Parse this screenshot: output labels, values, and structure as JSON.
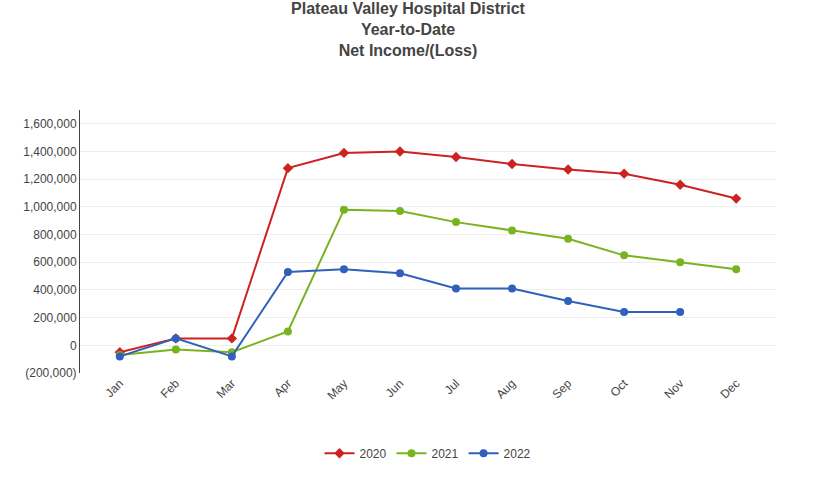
{
  "chart_data": {
    "type": "line",
    "title": "Plateau Valley Hospital District\nYear-to-Date\nNet Income/(Loss)",
    "categories": [
      "Jan",
      "Feb",
      "Mar",
      "Apr",
      "May",
      "Jun",
      "Jul",
      "Aug",
      "Sep",
      "Oct",
      "Nov",
      "Dec"
    ],
    "series": [
      {
        "name": "2020",
        "color": "#CC2222",
        "marker": "diamond",
        "values": [
          -50000,
          50000,
          50000,
          1280000,
          1390000,
          1400000,
          1360000,
          1310000,
          1270000,
          1240000,
          1160000,
          1060000
        ]
      },
      {
        "name": "2021",
        "color": "#7AB320",
        "marker": "circle",
        "values": [
          -70000,
          -30000,
          -50000,
          100000,
          980000,
          970000,
          890000,
          830000,
          770000,
          650000,
          600000,
          550000
        ]
      },
      {
        "name": "2022",
        "color": "#3060BB",
        "marker": "circle",
        "values": [
          -80000,
          50000,
          -80000,
          530000,
          550000,
          520000,
          410000,
          410000,
          320000,
          240000,
          240000,
          null
        ]
      }
    ],
    "ylim": [
      -200000,
      1700000
    ],
    "yticks": [
      {
        "value": -200000,
        "label": "(200,000)"
      },
      0,
      {
        "value": 200000,
        "label": "200,000"
      },
      {
        "value": 400000,
        "label": "400,000"
      },
      {
        "value": 600000,
        "label": "600,000"
      },
      {
        "value": 800000,
        "label": "800,000"
      },
      {
        "value": 1000000,
        "label": "1,000,000"
      },
      {
        "value": 1200000,
        "label": "1,200,000"
      },
      {
        "value": 1400000,
        "label": "1,400,000"
      },
      {
        "value": 1600000,
        "label": "1,600,000"
      }
    ],
    "grid": true,
    "legend": "bottom"
  }
}
